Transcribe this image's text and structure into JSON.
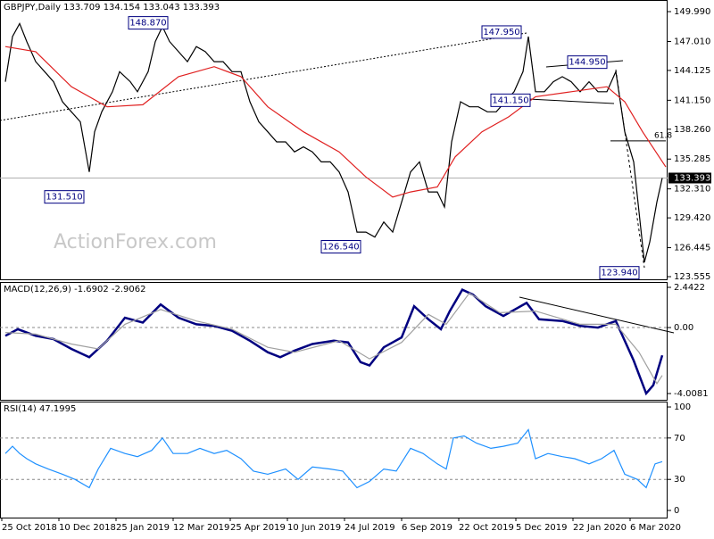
{
  "chart_data": [
    {
      "type": "line",
      "title": "GBPJPY,Daily  133.709 134.154 133.043 133.393",
      "watermark": "ActionForex.com",
      "xlim": [
        0,
        372
      ],
      "ylim": [
        123.29,
        151.15
      ],
      "grid": false,
      "yticks": [
        {
          "value": 149.99,
          "label": "149.990"
        },
        {
          "value": 147.01,
          "label": "147.010"
        },
        144.125,
        {
          "value": 141.15,
          "label": "141.150"
        },
        {
          "value": 138.26,
          "label": "138.260"
        },
        135.285,
        {
          "value": 132.31,
          "label": "132.310"
        },
        {
          "value": 129.42,
          "label": "129.420"
        },
        126.445,
        123.555
      ],
      "series": [
        {
          "name": "GBPJPY",
          "color": "#000000",
          "x": [
            2,
            6,
            10,
            14,
            19,
            24,
            29,
            34,
            39,
            44,
            49,
            52,
            56,
            62,
            66,
            72,
            76,
            82,
            86,
            90,
            94,
            99,
            104,
            109,
            114,
            119,
            124,
            129,
            134,
            139,
            144,
            149,
            154,
            159,
            164,
            169,
            174,
            179,
            184,
            189,
            194,
            199,
            204,
            209,
            214,
            219,
            224,
            229,
            234,
            239,
            244,
            248,
            252,
            257,
            262,
            267,
            272,
            277,
            282,
            287,
            292,
            295,
            299,
            304,
            309,
            314,
            319,
            324,
            329,
            334,
            339,
            344,
            349,
            354,
            357,
            360,
            363,
            367,
            370
          ],
          "values": [
            143,
            147.5,
            148.8,
            147,
            145,
            144,
            143,
            141,
            140,
            139,
            134,
            138,
            140,
            142,
            144,
            143,
            142,
            144,
            147,
            148.5,
            147,
            146,
            145,
            146.5,
            146,
            145,
            145,
            144,
            144,
            141,
            139,
            138,
            137,
            137,
            136,
            136.5,
            136,
            135,
            135,
            134,
            132,
            128,
            128,
            127.5,
            129,
            128,
            131,
            134,
            135,
            132,
            132,
            130.5,
            137,
            141,
            140.5,
            140.5,
            140,
            140,
            141,
            142,
            144,
            147.5,
            142,
            142,
            143,
            143.5,
            143,
            142,
            143,
            142,
            142,
            144,
            138,
            135,
            130,
            125,
            127,
            131,
            133.393
          ]
        },
        {
          "name": "MA",
          "color": "#e02020",
          "x": [
            2,
            19,
            39,
            59,
            79,
            99,
            119,
            134,
            149,
            169,
            189,
            204,
            219,
            229,
            244,
            254,
            269,
            284,
            299,
            319,
            339,
            349,
            359,
            372
          ],
          "values": [
            146.5,
            146,
            142.5,
            140.5,
            140.7,
            143.5,
            144.5,
            143.5,
            140.5,
            138,
            136,
            133.5,
            131.5,
            132,
            132.5,
            135.5,
            138,
            139.5,
            141.5,
            142,
            142.5,
            141,
            138,
            134.5
          ]
        }
      ],
      "last_price": {
        "value": 133.393,
        "label": "133.393"
      },
      "annotations": [
        {
          "value": 148.87,
          "label": "148.870",
          "x": 82
        },
        {
          "value": 131.51,
          "label": "131.510",
          "x": 35
        },
        {
          "value": 126.54,
          "label": "126.540",
          "x": 190
        },
        {
          "value": 147.95,
          "label": "147.950",
          "x": 280
        },
        {
          "value": 144.95,
          "label": "144.950",
          "x": 328
        },
        {
          "value": 141.15,
          "label": "141.150",
          "x": 285
        },
        {
          "value": 123.94,
          "label": "123.940",
          "x": 346
        }
      ],
      "fib": {
        "label": "61.8",
        "y": 137.1,
        "x_start": 341,
        "x_end": 372
      }
    },
    {
      "type": "line",
      "title": "MACD(12,26,9) -1.6902 -2.9062",
      "xlim": [
        0,
        372
      ],
      "ylim": [
        -4.387,
        2.767
      ],
      "grid": true,
      "yticks": [
        2.4422,
        {
          "value": 0,
          "label": "0.00"
        },
        -4.0081
      ],
      "series": [
        {
          "name": "MACD",
          "color": "#000080",
          "x": [
            2,
            9,
            19,
            29,
            39,
            49,
            59,
            69,
            79,
            89,
            99,
            109,
            119,
            129,
            139,
            149,
            156,
            164,
            174,
            186,
            194,
            201,
            206,
            214,
            224,
            231,
            239,
            246,
            251,
            258,
            264,
            271,
            281,
            294,
            301,
            314,
            324,
            334,
            344,
            354,
            361,
            365,
            370
          ],
          "values": [
            -0.5,
            -0.1,
            -0.5,
            -0.7,
            -1.3,
            -1.8,
            -0.8,
            0.6,
            0.3,
            1.4,
            0.6,
            0.2,
            0.1,
            -0.2,
            -0.8,
            -1.5,
            -1.8,
            -1.4,
            -1.0,
            -0.8,
            -0.9,
            -2.1,
            -2.3,
            -1.2,
            -0.6,
            1.3,
            0.5,
            -0.1,
            1.0,
            2.3,
            2.0,
            1.3,
            0.7,
            1.5,
            0.5,
            0.4,
            0.1,
            0,
            0.4,
            -2.0,
            -4.0,
            -3.5,
            -1.6902
          ]
        },
        {
          "name": "Signal",
          "color": "#a0a0a0",
          "x": [
            2,
            19,
            39,
            54,
            69,
            89,
            109,
            129,
            149,
            164,
            189,
            206,
            224,
            239,
            249,
            262,
            279,
            299,
            324,
            344,
            357,
            367,
            370
          ],
          "values": [
            -0.3,
            -0.4,
            -1.0,
            -1.3,
            0.2,
            1.1,
            0.4,
            -0.1,
            -1.2,
            -1.5,
            -0.8,
            -1.9,
            -0.9,
            0.8,
            0.2,
            2.1,
            0.9,
            1.0,
            0.2,
            0.2,
            -1.5,
            -3.4,
            -2.9062
          ]
        }
      ]
    },
    {
      "type": "line",
      "title": "RSI(14) 47.1995",
      "xlim": [
        0,
        372
      ],
      "ylim": [
        -6.9,
        105.2
      ],
      "grid": true,
      "yticks": [
        100,
        70,
        30,
        0
      ],
      "xticks": [
        {
          "value": 0,
          "label": "25 Oct 2018"
        },
        {
          "value": 32,
          "label": "10 Dec 2018"
        },
        {
          "value": 64,
          "label": "25 Jan 2019"
        },
        {
          "value": 96,
          "label": "12 Mar 2019"
        },
        {
          "value": 128,
          "label": "25 Apr 2019"
        },
        {
          "value": 160,
          "label": "10 Jun 2019"
        },
        {
          "value": 192,
          "label": "24 Jul 2019"
        },
        {
          "value": 224,
          "label": "6 Sep 2019"
        },
        {
          "value": 256,
          "label": "22 Oct 2019"
        },
        {
          "value": 288,
          "label": "5 Dec 2019"
        },
        {
          "value": 320,
          "label": "22 Jan 2020"
        },
        {
          "value": 352,
          "label": "6 Mar 2020"
        }
      ],
      "series": [
        {
          "name": "RSI",
          "color": "#1e90ff",
          "x": [
            2,
            6,
            10,
            14,
            19,
            26,
            34,
            41,
            49,
            54,
            61,
            69,
            76,
            84,
            90,
            96,
            104,
            111,
            119,
            126,
            134,
            141,
            149,
            159,
            166,
            174,
            184,
            191,
            199,
            206,
            214,
            221,
            229,
            236,
            244,
            249,
            253,
            259,
            266,
            274,
            281,
            289,
            295,
            299,
            306,
            314,
            321,
            329,
            336,
            343,
            349,
            356,
            361,
            366,
            370
          ],
          "values": [
            55,
            62,
            55,
            50,
            45,
            40,
            35,
            30,
            22,
            40,
            60,
            55,
            52,
            58,
            70,
            55,
            55,
            60,
            55,
            58,
            50,
            38,
            35,
            40,
            30,
            42,
            40,
            38,
            22,
            28,
            40,
            38,
            60,
            55,
            45,
            40,
            70,
            72,
            65,
            60,
            62,
            65,
            78,
            50,
            55,
            52,
            50,
            45,
            50,
            58,
            35,
            30,
            22,
            45,
            47.1995
          ]
        }
      ]
    }
  ]
}
